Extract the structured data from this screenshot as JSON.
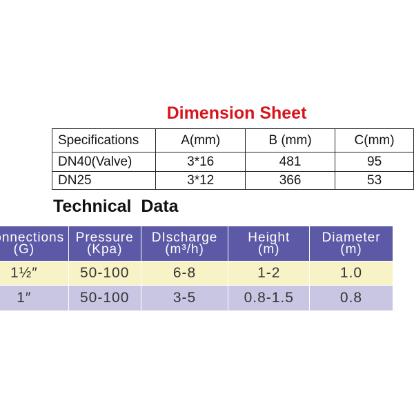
{
  "dimension_sheet": {
    "title": "Dimension Sheet",
    "header": [
      "Specifications",
      "A(mm)",
      "B (mm)",
      "C(mm)"
    ],
    "rows": [
      [
        "DN40(Valve)",
        "3*16",
        "481",
        "95"
      ],
      [
        "DN25",
        "3*12",
        "366",
        "53"
      ]
    ]
  },
  "technical_data": {
    "title": "Technical  Data",
    "header": [
      [
        "Connections",
        "(G)"
      ],
      [
        "Pressure",
        "(Kpa)"
      ],
      [
        "DIscharge",
        "(m³/h)"
      ],
      [
        "Height",
        "(m)"
      ],
      [
        "Diameter",
        "(m)"
      ]
    ],
    "rows": [
      [
        "1½″",
        "50-100",
        "6-8",
        "1-2",
        "1.0"
      ],
      [
        "1″",
        "50-100",
        "3-5",
        "0.8-1.5",
        "0.8"
      ]
    ]
  }
}
